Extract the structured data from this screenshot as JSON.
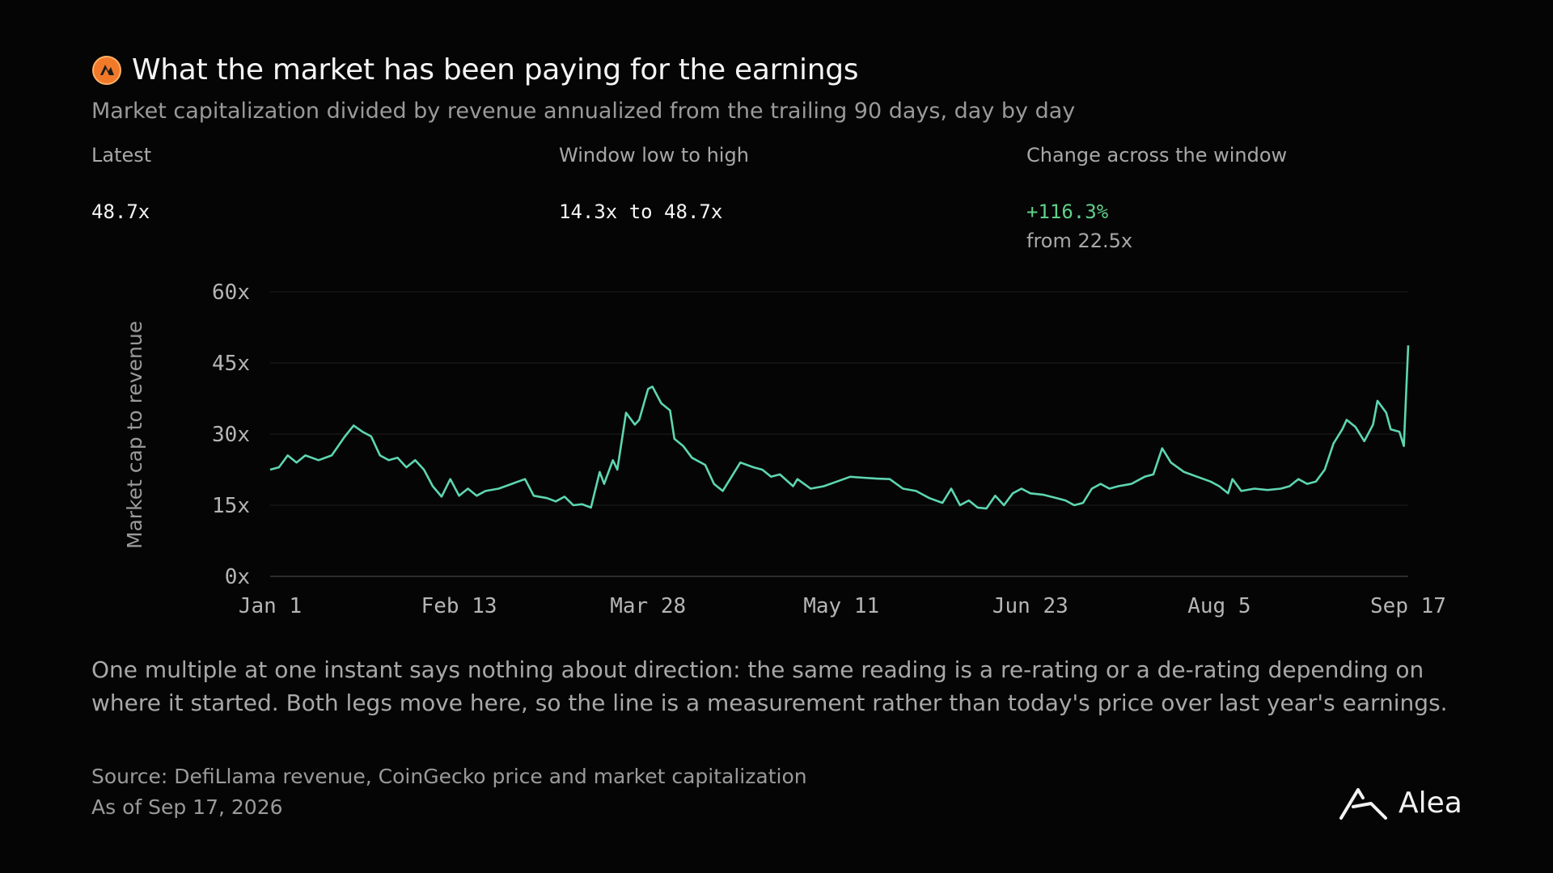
{
  "title": "What the market has been paying for the earnings",
  "subtitle": "Market capitalization divided by revenue annualized from the trailing 90 days, day by day",
  "stats": {
    "latest": {
      "label": "Latest",
      "value": "48.7x"
    },
    "range": {
      "label": "Window low to high",
      "value": "14.3x to 48.7x"
    },
    "change": {
      "label": "Change across the window",
      "value": "+116.3%",
      "sub": "from 22.5x"
    }
  },
  "chart_data": {
    "type": "line",
    "title": "",
    "xlabel": "",
    "ylabel": "Market cap to revenue",
    "ylim": [
      0,
      60
    ],
    "yticks": [
      0,
      15,
      30,
      45,
      60
    ],
    "ytick_labels": [
      "0x",
      "15x",
      "30x",
      "45x",
      "60x"
    ],
    "xlim": [
      "2026-01-01",
      "2026-09-17"
    ],
    "xticks": [
      "2026-01-01",
      "2026-02-13",
      "2026-03-28",
      "2026-05-11",
      "2026-06-23",
      "2026-08-05",
      "2026-09-17"
    ],
    "xtick_labels": [
      "Jan 1",
      "Feb 13",
      "Mar 28",
      "May 11",
      "Jun 23",
      "Aug 5",
      "Sep 17"
    ],
    "grid": true,
    "line_color": "#5ed6b1",
    "series": [
      {
        "points": [
          [
            "2026-01-01",
            22.5
          ],
          [
            "2026-01-03",
            23.0
          ],
          [
            "2026-01-05",
            25.5
          ],
          [
            "2026-01-07",
            24.0
          ],
          [
            "2026-01-09",
            25.5
          ],
          [
            "2026-01-12",
            24.5
          ],
          [
            "2026-01-15",
            25.5
          ],
          [
            "2026-01-18",
            29.5
          ],
          [
            "2026-01-20",
            31.8
          ],
          [
            "2026-01-22",
            30.5
          ],
          [
            "2026-01-24",
            29.5
          ],
          [
            "2026-01-26",
            25.5
          ],
          [
            "2026-01-28",
            24.5
          ],
          [
            "2026-01-30",
            25.0
          ],
          [
            "2026-02-01",
            23.0
          ],
          [
            "2026-02-03",
            24.5
          ],
          [
            "2026-02-05",
            22.5
          ],
          [
            "2026-02-07",
            19.0
          ],
          [
            "2026-02-09",
            16.8
          ],
          [
            "2026-02-11",
            20.5
          ],
          [
            "2026-02-13",
            17.0
          ],
          [
            "2026-02-15",
            18.5
          ],
          [
            "2026-02-17",
            17.0
          ],
          [
            "2026-02-19",
            18.0
          ],
          [
            "2026-02-22",
            18.5
          ],
          [
            "2026-02-25",
            19.5
          ],
          [
            "2026-02-28",
            20.5
          ],
          [
            "2026-03-02",
            17.0
          ],
          [
            "2026-03-05",
            16.5
          ],
          [
            "2026-03-07",
            15.8
          ],
          [
            "2026-03-09",
            16.8
          ],
          [
            "2026-03-11",
            15.0
          ],
          [
            "2026-03-13",
            15.2
          ],
          [
            "2026-03-15",
            14.5
          ],
          [
            "2026-03-17",
            22.0
          ],
          [
            "2026-03-18",
            19.5
          ],
          [
            "2026-03-20",
            24.5
          ],
          [
            "2026-03-21",
            22.5
          ],
          [
            "2026-03-23",
            34.5
          ],
          [
            "2026-03-25",
            32.0
          ],
          [
            "2026-03-26",
            33.0
          ],
          [
            "2026-03-28",
            39.5
          ],
          [
            "2026-03-29",
            40.0
          ],
          [
            "2026-03-31",
            36.5
          ],
          [
            "2026-04-02",
            35.0
          ],
          [
            "2026-04-03",
            29.0
          ],
          [
            "2026-04-05",
            27.5
          ],
          [
            "2026-04-07",
            25.0
          ],
          [
            "2026-04-10",
            23.5
          ],
          [
            "2026-04-12",
            19.5
          ],
          [
            "2026-04-14",
            18.0
          ],
          [
            "2026-04-16",
            21.0
          ],
          [
            "2026-04-18",
            24.0
          ],
          [
            "2026-04-21",
            23.0
          ],
          [
            "2026-04-23",
            22.5
          ],
          [
            "2026-04-25",
            21.0
          ],
          [
            "2026-04-27",
            21.5
          ],
          [
            "2026-04-30",
            19.0
          ],
          [
            "2026-05-01",
            20.5
          ],
          [
            "2026-05-04",
            18.5
          ],
          [
            "2026-05-07",
            19.0
          ],
          [
            "2026-05-10",
            20.0
          ],
          [
            "2026-05-13",
            21.0
          ],
          [
            "2026-05-16",
            20.8
          ],
          [
            "2026-05-19",
            20.6
          ],
          [
            "2026-05-22",
            20.5
          ],
          [
            "2026-05-25",
            18.5
          ],
          [
            "2026-05-28",
            18.0
          ],
          [
            "2026-05-31",
            16.5
          ],
          [
            "2026-06-03",
            15.5
          ],
          [
            "2026-06-05",
            18.5
          ],
          [
            "2026-06-07",
            15.0
          ],
          [
            "2026-06-09",
            16.0
          ],
          [
            "2026-06-11",
            14.5
          ],
          [
            "2026-06-13",
            14.3
          ],
          [
            "2026-06-15",
            17.0
          ],
          [
            "2026-06-17",
            15.0
          ],
          [
            "2026-06-19",
            17.5
          ],
          [
            "2026-06-21",
            18.5
          ],
          [
            "2026-06-23",
            17.5
          ],
          [
            "2026-06-26",
            17.2
          ],
          [
            "2026-06-29",
            16.5
          ],
          [
            "2026-07-01",
            16.0
          ],
          [
            "2026-07-03",
            15.0
          ],
          [
            "2026-07-05",
            15.5
          ],
          [
            "2026-07-07",
            18.5
          ],
          [
            "2026-07-09",
            19.5
          ],
          [
            "2026-07-11",
            18.5
          ],
          [
            "2026-07-13",
            19.0
          ],
          [
            "2026-07-16",
            19.5
          ],
          [
            "2026-07-19",
            21.0
          ],
          [
            "2026-07-21",
            21.5
          ],
          [
            "2026-07-23",
            27.0
          ],
          [
            "2026-07-25",
            24.0
          ],
          [
            "2026-07-28",
            22.0
          ],
          [
            "2026-07-31",
            21.0
          ],
          [
            "2026-08-03",
            20.0
          ],
          [
            "2026-08-05",
            19.0
          ],
          [
            "2026-08-07",
            17.5
          ],
          [
            "2026-08-08",
            20.5
          ],
          [
            "2026-08-10",
            18.0
          ],
          [
            "2026-08-13",
            18.5
          ],
          [
            "2026-08-16",
            18.2
          ],
          [
            "2026-08-19",
            18.5
          ],
          [
            "2026-08-21",
            19.0
          ],
          [
            "2026-08-23",
            20.5
          ],
          [
            "2026-08-25",
            19.5
          ],
          [
            "2026-08-27",
            20.0
          ],
          [
            "2026-08-29",
            22.5
          ],
          [
            "2026-08-31",
            28.0
          ],
          [
            "2026-09-02",
            31.0
          ],
          [
            "2026-09-03",
            33.0
          ],
          [
            "2026-09-05",
            31.5
          ],
          [
            "2026-09-07",
            28.5
          ],
          [
            "2026-09-09",
            32.0
          ],
          [
            "2026-09-10",
            37.0
          ],
          [
            "2026-09-12",
            34.5
          ],
          [
            "2026-09-13",
            31.0
          ],
          [
            "2026-09-15",
            30.5
          ],
          [
            "2026-09-16",
            27.5
          ],
          [
            "2026-09-17",
            48.7
          ]
        ]
      }
    ]
  },
  "note": "One multiple at one instant says nothing about direction: the same reading is a re-rating or a de-rating depending on where it started. Both legs move here, so the line is a measurement rather than today's price over last year's earnings.",
  "source": {
    "line1": "Source: DefiLlama revenue, CoinGecko price and market capitalization",
    "line2": "As of Sep 17, 2026"
  },
  "brand": {
    "name": "Alea",
    "icon": "alea-logo-icon"
  },
  "title_icon": "flame-logo-icon",
  "colors": {
    "background": "#050505",
    "positive": "#5fd08a",
    "line": "#5ed6b1"
  }
}
